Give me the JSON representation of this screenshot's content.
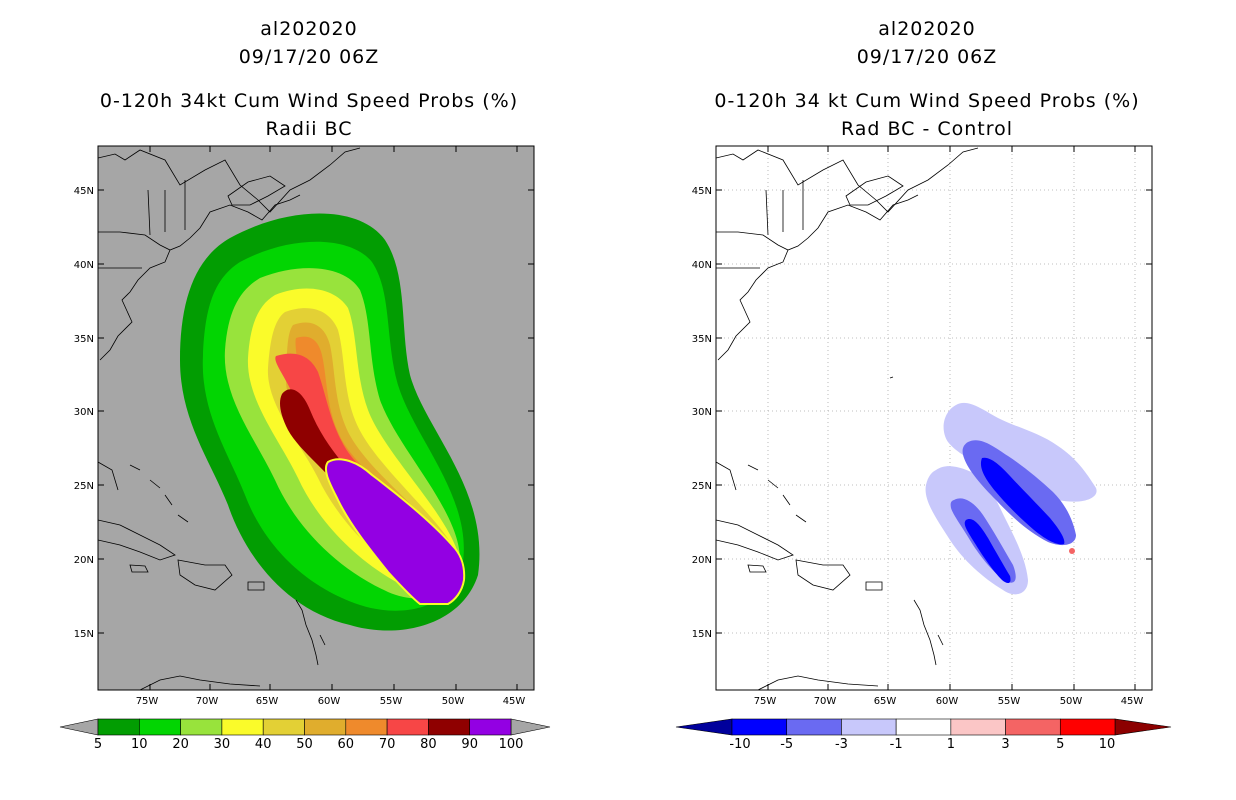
{
  "left": {
    "storm_id": "al202020",
    "datetime": "09/17/20 06Z",
    "title": "0-120h 34kt Cum Wind Speed Probs (%)",
    "subtitle": "Radii BC",
    "lon_labels": [
      "75W",
      "70W",
      "65W",
      "60W",
      "55W",
      "50W",
      "45W"
    ],
    "lat_labels": [
      "45N",
      "40N",
      "35N",
      "30N",
      "25N",
      "20N",
      "15N"
    ],
    "colorbar": {
      "colors": [
        "#029d02",
        "#02d502",
        "#98e33c",
        "#fafb2a",
        "#e3d035",
        "#e0ad2d",
        "#ef8a2c",
        "#f74646",
        "#8f0000",
        "#9300e3"
      ],
      "labels": [
        "5",
        "10",
        "20",
        "30",
        "40",
        "50",
        "60",
        "70",
        "80",
        "90",
        "100"
      ]
    },
    "colors": {
      "background": "#a6a6a6"
    }
  },
  "right": {
    "storm_id": "al202020",
    "datetime": "09/17/20 06Z",
    "title": "0-120h 34 kt Cum Wind Speed Probs (%)",
    "subtitle": "Rad BC - Control",
    "lon_labels": [
      "75W",
      "70W",
      "65W",
      "60W",
      "55W",
      "50W",
      "45W"
    ],
    "lat_labels": [
      "45N",
      "40N",
      "35N",
      "30N",
      "25N",
      "20N",
      "15N"
    ],
    "colorbar": {
      "colors": [
        "#0000ff",
        "#6a6af2",
        "#c8c8fb",
        "#ffffff",
        "#fbc6c6",
        "#f46464",
        "#ff0000"
      ],
      "end_colors": [
        "#00009c",
        "#8c0000"
      ],
      "labels": [
        "-10",
        "-5",
        "-3",
        "-1",
        "1",
        "3",
        "5",
        "10"
      ]
    }
  }
}
